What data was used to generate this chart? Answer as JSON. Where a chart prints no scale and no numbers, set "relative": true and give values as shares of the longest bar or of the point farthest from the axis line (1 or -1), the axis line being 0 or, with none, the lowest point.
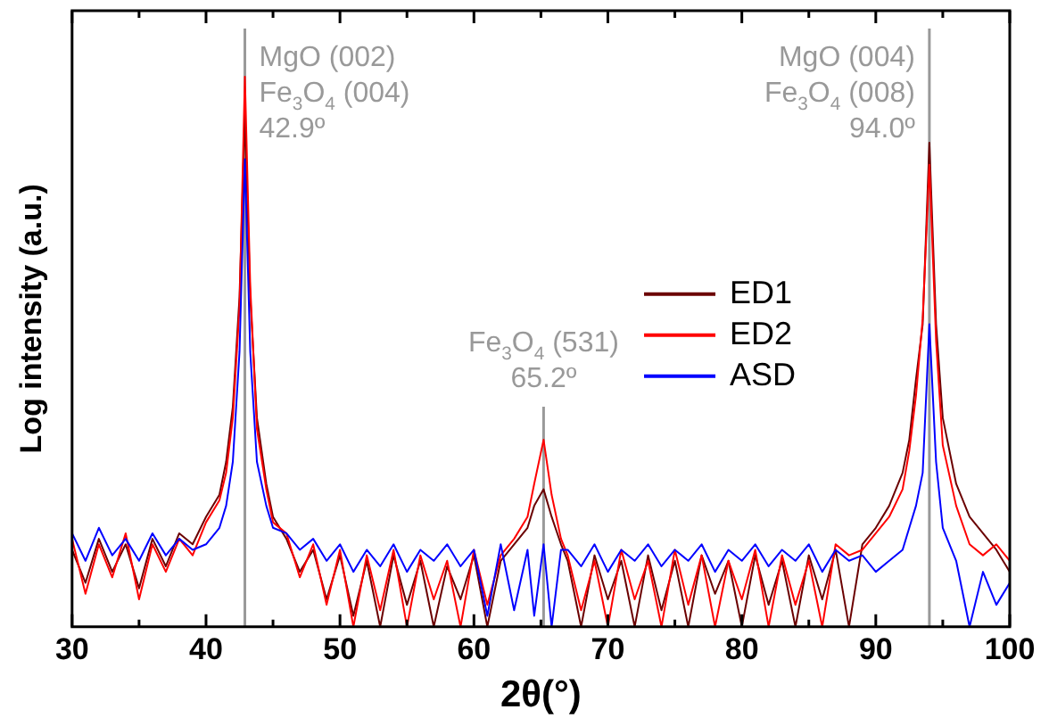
{
  "chart_data": {
    "type": "line",
    "relative": true,
    "xlabel": "2θ(°)",
    "ylabel": "Log intensity (a.u.)",
    "xlim": [
      30,
      100
    ],
    "xticks": [
      30,
      40,
      50,
      60,
      70,
      80,
      90,
      100
    ],
    "grid": false,
    "legend": "right",
    "marker": "none",
    "line_style": "solid",
    "x": [
      30,
      31,
      32,
      33,
      34,
      35,
      36,
      37,
      38,
      39,
      40,
      41,
      41.5,
      42,
      42.5,
      42.9,
      43.3,
      43.8,
      44.5,
      45,
      46,
      47,
      48,
      49,
      50,
      51,
      52,
      53,
      54,
      55,
      56,
      57,
      58,
      59,
      60,
      61,
      62,
      63,
      64,
      64.5,
      65.2,
      65.8,
      66.5,
      67,
      68,
      69,
      70,
      71,
      72,
      73,
      74,
      75,
      76,
      77,
      78,
      79,
      80,
      81,
      82,
      83,
      84,
      85,
      86,
      87,
      88,
      89,
      90,
      91,
      92,
      92.5,
      93,
      93.5,
      94,
      94.5,
      95,
      96,
      97,
      98,
      99,
      100
    ],
    "series": [
      {
        "name": "ED1",
        "color": "#6b0000",
        "values": [
          0.14,
          0.08,
          0.16,
          0.1,
          0.15,
          0.07,
          0.16,
          0.11,
          0.17,
          0.15,
          0.2,
          0.24,
          0.3,
          0.4,
          0.6,
          0.93,
          0.6,
          0.38,
          0.26,
          0.2,
          0.16,
          0.1,
          0.14,
          0.05,
          0.13,
          0.02,
          0.12,
          0,
          0.13,
          0.04,
          0.12,
          0,
          0.11,
          0.05,
          0.13,
          0,
          0.12,
          0.15,
          0.18,
          0.22,
          0.25,
          0.2,
          0.15,
          0.12,
          0,
          0.13,
          0.05,
          0.12,
          0,
          0.13,
          0.03,
          0.12,
          0,
          0.13,
          0.06,
          0.12,
          0,
          0.13,
          0.04,
          0.12,
          0,
          0.13,
          0.05,
          0.14,
          0,
          0.15,
          0.18,
          0.22,
          0.28,
          0.34,
          0.45,
          0.55,
          0.88,
          0.55,
          0.38,
          0.26,
          0.2,
          0.17,
          0.14,
          0.1
        ]
      },
      {
        "name": "ED2",
        "color": "#ff0000",
        "values": [
          0.16,
          0.06,
          0.15,
          0.09,
          0.17,
          0.05,
          0.15,
          0.1,
          0.16,
          0.13,
          0.19,
          0.23,
          0.28,
          0.38,
          0.58,
          1,
          0.62,
          0.36,
          0.25,
          0.19,
          0.17,
          0.09,
          0.15,
          0.04,
          0.14,
          0,
          0.13,
          0.03,
          0.14,
          0,
          0.13,
          0.05,
          0.12,
          0,
          0.14,
          0.04,
          0.13,
          0.16,
          0.2,
          0.26,
          0.34,
          0.24,
          0.16,
          0.13,
          0.03,
          0.12,
          0,
          0.14,
          0.05,
          0.12,
          0,
          0.14,
          0.04,
          0.13,
          0,
          0.12,
          0.05,
          0.14,
          0,
          0.13,
          0.04,
          0.12,
          0,
          0.15,
          0.13,
          0.14,
          0.17,
          0.2,
          0.25,
          0.32,
          0.42,
          0.56,
          0.84,
          0.52,
          0.33,
          0.22,
          0.15,
          0.13,
          0.15,
          0.12
        ]
      },
      {
        "name": "ASD",
        "color": "#0000ff",
        "values": [
          0.17,
          0.12,
          0.18,
          0.13,
          0.16,
          0.12,
          0.17,
          0.13,
          0.16,
          0.14,
          0.15,
          0.18,
          0.22,
          0.3,
          0.5,
          0.85,
          0.5,
          0.3,
          0.22,
          0.18,
          0.17,
          0.14,
          0.16,
          0.12,
          0.15,
          0.1,
          0.14,
          0.11,
          0.15,
          0.1,
          0.14,
          0.12,
          0.15,
          0.11,
          0.14,
          0.02,
          0.15,
          0.03,
          0.14,
          0.02,
          0.15,
          0,
          0.14,
          0.14,
          0.11,
          0.15,
          0.1,
          0.14,
          0.12,
          0.15,
          0.11,
          0.14,
          0.12,
          0.15,
          0.1,
          0.14,
          0.12,
          0.15,
          0.11,
          0.14,
          0.12,
          0.15,
          0.1,
          0.14,
          0.12,
          0.13,
          0.1,
          0.12,
          0.14,
          0.18,
          0.22,
          0.28,
          0.55,
          0.3,
          0.18,
          0.12,
          0,
          0.1,
          0.04,
          0.08
        ]
      }
    ],
    "ref_lines": [
      {
        "axis": "x",
        "value": 42.9,
        "label": "MgO (002)\nFe$_{3}$O$_{4}$ (004)\n42.9º",
        "color": "#999999"
      },
      {
        "axis": "x",
        "value": 65.2,
        "label": "Fe$_{3}$O$_{4}$ (531)\n65.2º",
        "color": "#999999"
      },
      {
        "axis": "x",
        "value": 94.0,
        "label": "MgO (004)\nFe$_{3}$O$_{4}$ (008)\n94.0º",
        "color": "#999999"
      }
    ]
  }
}
